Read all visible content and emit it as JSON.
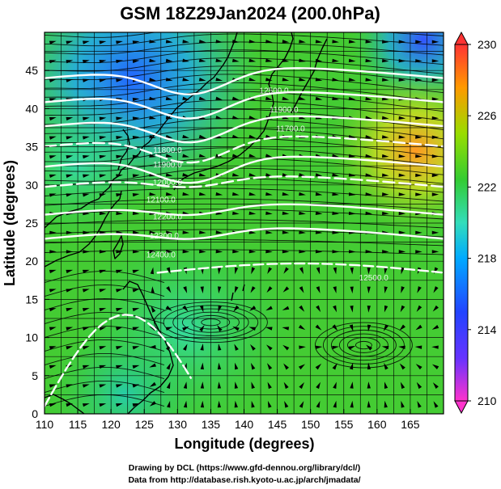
{
  "title": "GSM 18Z29Jan2024 (200.0hPa)",
  "x_axis": {
    "label": "Longitude (degrees)",
    "range": [
      110,
      170
    ],
    "ticks": [
      "110",
      "115",
      "120",
      "125",
      "130",
      "135",
      "140",
      "145",
      "150",
      "155",
      "160",
      "165"
    ]
  },
  "y_axis": {
    "label": "Latitude  (degrees)",
    "range": [
      0,
      50
    ],
    "ticks": [
      "0",
      "5",
      "10",
      "15",
      "20",
      "25",
      "30",
      "35",
      "40",
      "45"
    ]
  },
  "colorbar": {
    "range": [
      210,
      230
    ],
    "ticks": [
      "210",
      "214",
      "218",
      "222",
      "226",
      "230"
    ],
    "colors": [
      "#ff33cc",
      "#3333ff",
      "#00aaff",
      "#33ddbb",
      "#33cc33",
      "#99dd00",
      "#ff9900",
      "#ff3333"
    ]
  },
  "contours": {
    "color": "#ffffff",
    "labels": [
      {
        "text": "12500.0",
        "lon": 144.5,
        "lat": 42.0
      },
      {
        "text": "11900.0",
        "lon": 146.0,
        "lat": 39.5
      },
      {
        "text": "11700.0",
        "lon": 147.0,
        "lat": 37.0
      },
      {
        "text": "11800.0",
        "lon": 128.5,
        "lat": 34.2
      },
      {
        "text": "11900.0",
        "lon": 128.5,
        "lat": 32.3
      },
      {
        "text": "12000.0",
        "lon": 128.5,
        "lat": 30.0
      },
      {
        "text": "12100.0",
        "lon": 127.5,
        "lat": 27.7
      },
      {
        "text": "12200.0",
        "lon": 128.5,
        "lat": 25.5
      },
      {
        "text": "12300.0",
        "lon": 128.0,
        "lat": 23.0
      },
      {
        "text": "12400.0",
        "lon": 127.5,
        "lat": 20.5
      },
      {
        "text": "12500.0",
        "lon": 159.5,
        "lat": 17.5
      }
    ]
  },
  "credits": {
    "line1": "Drawing by DCL (https://www.gfd-dennou.org/library/dcl/)",
    "line2": "Data from http://database.rish.kyoto-u.ac.jp/arch/jmadata/"
  }
}
